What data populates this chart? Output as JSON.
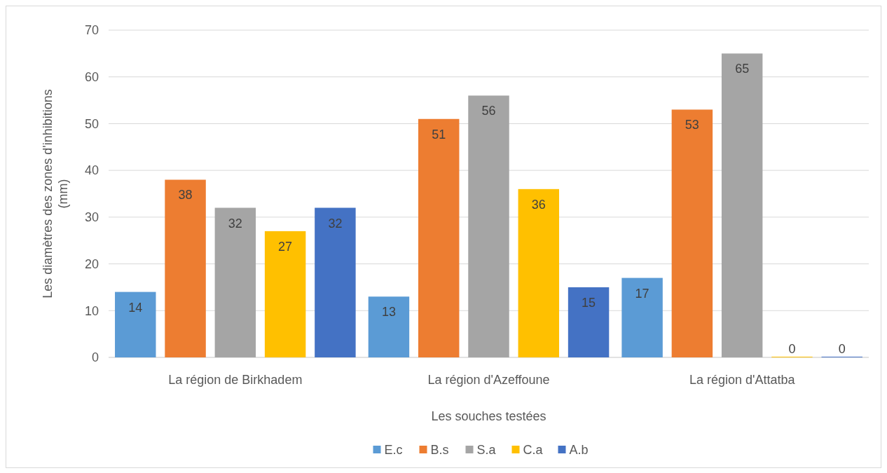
{
  "chart_data": {
    "type": "bar",
    "xlabel": "Les souches testées",
    "ylabel": "Les diamètres des zones d'inhibitions (mm)",
    "categories": [
      "La région de Birkhadem",
      "La région d'Azeffoune",
      "La région d'Attatba"
    ],
    "series": [
      {
        "name": "E.c",
        "color": "#5b9bd5",
        "values": [
          14,
          13,
          17
        ]
      },
      {
        "name": "B.s",
        "color": "#ed7d31",
        "values": [
          38,
          51,
          53
        ]
      },
      {
        "name": "S.a",
        "color": "#a5a5a5",
        "values": [
          32,
          56,
          65
        ]
      },
      {
        "name": "C.a",
        "color": "#ffc000",
        "values": [
          27,
          36,
          0
        ]
      },
      {
        "name": "A.b",
        "color": "#4472c4",
        "values": [
          32,
          15,
          0
        ]
      }
    ],
    "ylim": [
      0,
      70
    ],
    "yticks": [
      0,
      10,
      20,
      30,
      40,
      50,
      60,
      70
    ],
    "grid": "y",
    "legend": "bottom",
    "data_labels": true
  }
}
